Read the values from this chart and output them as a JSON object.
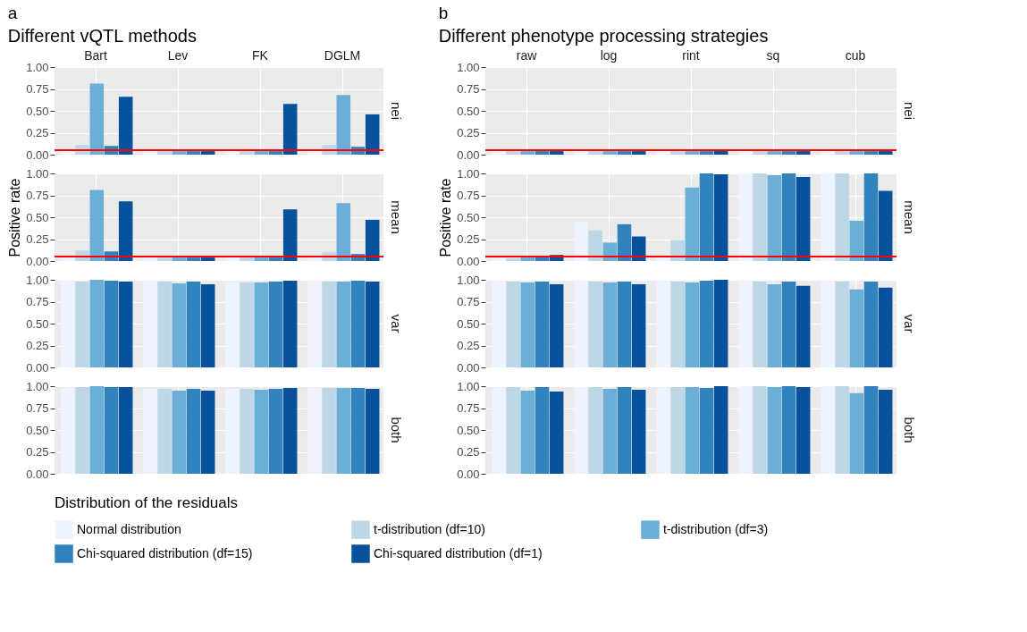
{
  "chart_data": [
    {
      "type": "bar",
      "annotations": [
        "a",
        "Different vQTL methods"
      ],
      "legend": "bottom",
      "legend_title": "Distribution of the residuals",
      "y2label": "nei",
      "categories": [
        "Bart",
        "Lev",
        "FK",
        "DGLM"
      ],
      "series": [
        {
          "name": "Normal distribution",
          "color": "#eff3ff",
          "values": [
            0.05,
            0.04,
            0.04,
            0.05
          ]
        },
        {
          "name": "t-distribution (df=10)",
          "color": "#bdd7e7",
          "values": [
            0.11,
            0.04,
            0.04,
            0.11
          ]
        },
        {
          "name": "t-distribution (df=3)",
          "color": "#6baed6",
          "values": [
            0.81,
            0.04,
            0.04,
            0.68
          ]
        },
        {
          "name": "Chi-squared distribution (df=15)",
          "color": "#3182bd",
          "values": [
            0.1,
            0.04,
            0.04,
            0.09
          ]
        },
        {
          "name": "Chi-squared distribution (df=1)",
          "color": "#08519c",
          "values": [
            0.66,
            0.04,
            0.58,
            0.46
          ]
        }
      ],
      "ylim": [
        0,
        1
      ],
      "yticks": [
        {
          "value": 0,
          "label": "0.00"
        },
        {
          "value": 0.25,
          "label": "0.25"
        },
        {
          "value": 0.5,
          "label": "0.50"
        },
        {
          "value": 0.75,
          "label": "0.75"
        },
        {
          "value": 1,
          "label": "1.00"
        }
      ],
      "grid": true,
      "ref_lines": [
        {
          "axis": "y",
          "value": 0.05,
          "color": "#ff0000"
        }
      ]
    },
    {
      "type": "bar",
      "ylabel": "Positive rate",
      "y2label": "mean",
      "categories": [
        null,
        null,
        null,
        null
      ],
      "tick_labels": "y",
      "series": [
        {
          "name": "Normal distribution",
          "color": "#eff3ff",
          "values": [
            0.05,
            0.04,
            0.04,
            0.05
          ]
        },
        {
          "name": "t-distribution (df=10)",
          "color": "#bdd7e7",
          "values": [
            0.12,
            0.04,
            0.04,
            0.1
          ]
        },
        {
          "name": "t-distribution (df=3)",
          "color": "#6baed6",
          "values": [
            0.81,
            0.04,
            0.04,
            0.66
          ]
        },
        {
          "name": "Chi-squared distribution (df=15)",
          "color": "#3182bd",
          "values": [
            0.11,
            0.04,
            0.04,
            0.08
          ]
        },
        {
          "name": "Chi-squared distribution (df=1)",
          "color": "#08519c",
          "values": [
            0.68,
            0.04,
            0.59,
            0.47
          ]
        }
      ],
      "ylim": [
        0,
        1
      ],
      "yticks": [
        {
          "value": 0,
          "label": "0.00"
        },
        {
          "value": 0.25,
          "label": "0.25"
        },
        {
          "value": 0.5,
          "label": "0.50"
        },
        {
          "value": 0.75,
          "label": "0.75"
        },
        {
          "value": 1,
          "label": "1.00"
        }
      ],
      "grid": true,
      "ref_lines": [
        {
          "axis": "y",
          "value": 0.05,
          "color": "#ff0000"
        }
      ]
    },
    {
      "type": "bar",
      "y2label": "var",
      "categories": [
        null,
        null,
        null,
        null
      ],
      "tick_labels": "y",
      "series": [
        {
          "name": "Normal distribution",
          "color": "#eff3ff",
          "values": [
            0.98,
            0.98,
            0.97,
            0.98
          ]
        },
        {
          "name": "t-distribution (df=10)",
          "color": "#bdd7e7",
          "values": [
            0.98,
            0.98,
            0.97,
            0.98
          ]
        },
        {
          "name": "t-distribution (df=3)",
          "color": "#6baed6",
          "values": [
            1.0,
            0.96,
            0.97,
            0.98
          ]
        },
        {
          "name": "Chi-squared distribution (df=15)",
          "color": "#3182bd",
          "values": [
            0.99,
            0.98,
            0.98,
            0.99
          ]
        },
        {
          "name": "Chi-squared distribution (df=1)",
          "color": "#08519c",
          "values": [
            0.98,
            0.95,
            0.99,
            0.98
          ]
        }
      ],
      "ylim": [
        0,
        1
      ],
      "yticks": [
        {
          "value": 0,
          "label": "0.00"
        },
        {
          "value": 0.25,
          "label": "0.25"
        },
        {
          "value": 0.5,
          "label": "0.50"
        },
        {
          "value": 0.75,
          "label": "0.75"
        },
        {
          "value": 1,
          "label": "1.00"
        }
      ],
      "grid": true
    },
    {
      "type": "bar",
      "y2label": "both",
      "categories": [
        null,
        null,
        null,
        null
      ],
      "tick_labels": "y",
      "series": [
        {
          "name": "Normal distribution",
          "color": "#eff3ff",
          "values": [
            0.98,
            0.97,
            0.97,
            0.98
          ]
        },
        {
          "name": "t-distribution (df=10)",
          "color": "#bdd7e7",
          "values": [
            0.99,
            0.97,
            0.97,
            0.98
          ]
        },
        {
          "name": "t-distribution (df=3)",
          "color": "#6baed6",
          "values": [
            1.0,
            0.95,
            0.96,
            0.98
          ]
        },
        {
          "name": "Chi-squared distribution (df=15)",
          "color": "#3182bd",
          "values": [
            0.99,
            0.97,
            0.97,
            0.98
          ]
        },
        {
          "name": "Chi-squared distribution (df=1)",
          "color": "#08519c",
          "values": [
            0.99,
            0.95,
            0.98,
            0.97
          ]
        }
      ],
      "ylim": [
        0,
        1
      ],
      "yticks": [
        {
          "value": 0,
          "label": "0.00"
        },
        {
          "value": 0.25,
          "label": "0.25"
        },
        {
          "value": 0.5,
          "label": "0.50"
        },
        {
          "value": 0.75,
          "label": "0.75"
        },
        {
          "value": 1,
          "label": "1.00"
        }
      ],
      "grid": true
    },
    {
      "type": "bar",
      "annotations": [
        "b",
        "Different phenotype processing strategies"
      ],
      "y2label": "nei",
      "categories": [
        "raw",
        "log",
        "rint",
        "sq",
        "cub"
      ],
      "series": [
        {
          "name": "Normal distribution",
          "color": "#eff3ff",
          "values": [
            0.04,
            0.04,
            0.04,
            0.04,
            0.04
          ]
        },
        {
          "name": "t-distribution (df=10)",
          "color": "#bdd7e7",
          "values": [
            0.04,
            0.04,
            0.04,
            0.04,
            0.04
          ]
        },
        {
          "name": "t-distribution (df=3)",
          "color": "#6baed6",
          "values": [
            0.04,
            0.04,
            0.04,
            0.04,
            0.04
          ]
        },
        {
          "name": "Chi-squared distribution (df=15)",
          "color": "#3182bd",
          "values": [
            0.04,
            0.04,
            0.04,
            0.04,
            0.04
          ]
        },
        {
          "name": "Chi-squared distribution (df=1)",
          "color": "#08519c",
          "values": [
            0.04,
            0.04,
            0.04,
            0.04,
            0.04
          ]
        }
      ],
      "ylim": [
        0,
        1
      ],
      "yticks": [
        {
          "value": 0,
          "label": "0.00"
        },
        {
          "value": 0.25,
          "label": "0.25"
        },
        {
          "value": 0.5,
          "label": "0.50"
        },
        {
          "value": 0.75,
          "label": "0.75"
        },
        {
          "value": 1,
          "label": "1.00"
        }
      ],
      "grid": true,
      "ref_lines": [
        {
          "axis": "y",
          "value": 0.05,
          "color": "#ff0000"
        }
      ]
    },
    {
      "type": "bar",
      "ylabel": "Positive rate",
      "y2label": "mean",
      "categories": [
        null,
        null,
        null,
        null,
        null
      ],
      "tick_labels": "y",
      "series": [
        {
          "name": "Normal distribution",
          "color": "#eff3ff",
          "values": [
            0.03,
            0.45,
            0.05,
            1.0,
            1.0
          ]
        },
        {
          "name": "t-distribution (df=10)",
          "color": "#bdd7e7",
          "values": [
            0.03,
            0.35,
            0.24,
            1.0,
            1.0
          ]
        },
        {
          "name": "t-distribution (df=3)",
          "color": "#6baed6",
          "values": [
            0.04,
            0.21,
            0.84,
            0.98,
            0.46
          ]
        },
        {
          "name": "Chi-squared distribution (df=15)",
          "color": "#3182bd",
          "values": [
            0.05,
            0.42,
            1.0,
            1.0,
            1.0
          ]
        },
        {
          "name": "Chi-squared distribution (df=1)",
          "color": "#08519c",
          "values": [
            0.07,
            0.28,
            0.99,
            0.96,
            0.8
          ]
        }
      ],
      "ylim": [
        0,
        1
      ],
      "yticks": [
        {
          "value": 0,
          "label": "0.00"
        },
        {
          "value": 0.25,
          "label": "0.25"
        },
        {
          "value": 0.5,
          "label": "0.50"
        },
        {
          "value": 0.75,
          "label": "0.75"
        },
        {
          "value": 1,
          "label": "1.00"
        }
      ],
      "grid": true,
      "ref_lines": [
        {
          "axis": "y",
          "value": 0.05,
          "color": "#ff0000"
        }
      ]
    },
    {
      "type": "bar",
      "y2label": "var",
      "categories": [
        null,
        null,
        null,
        null,
        null
      ],
      "tick_labels": "y",
      "series": [
        {
          "name": "Normal distribution",
          "color": "#eff3ff",
          "values": [
            0.98,
            0.98,
            0.98,
            0.98,
            0.98
          ]
        },
        {
          "name": "t-distribution (df=10)",
          "color": "#bdd7e7",
          "values": [
            0.98,
            0.98,
            0.98,
            0.98,
            0.98
          ]
        },
        {
          "name": "t-distribution (df=3)",
          "color": "#6baed6",
          "values": [
            0.97,
            0.97,
            0.97,
            0.95,
            0.89
          ]
        },
        {
          "name": "Chi-squared distribution (df=15)",
          "color": "#3182bd",
          "values": [
            0.98,
            0.98,
            0.99,
            0.98,
            0.98
          ]
        },
        {
          "name": "Chi-squared distribution (df=1)",
          "color": "#08519c",
          "values": [
            0.95,
            0.95,
            1.0,
            0.93,
            0.91
          ]
        }
      ],
      "ylim": [
        0,
        1
      ],
      "yticks": [
        {
          "value": 0,
          "label": "0.00"
        },
        {
          "value": 0.25,
          "label": "0.25"
        },
        {
          "value": 0.5,
          "label": "0.50"
        },
        {
          "value": 0.75,
          "label": "0.75"
        },
        {
          "value": 1,
          "label": "1.00"
        }
      ],
      "grid": true
    },
    {
      "type": "bar",
      "y2label": "both",
      "categories": [
        null,
        null,
        null,
        null,
        null
      ],
      "tick_labels": "y",
      "series": [
        {
          "name": "Normal distribution",
          "color": "#eff3ff",
          "values": [
            0.98,
            0.99,
            0.98,
            1.0,
            1.0
          ]
        },
        {
          "name": "t-distribution (df=10)",
          "color": "#bdd7e7",
          "values": [
            0.99,
            0.99,
            0.99,
            1.0,
            1.0
          ]
        },
        {
          "name": "t-distribution (df=3)",
          "color": "#6baed6",
          "values": [
            0.95,
            0.97,
            0.99,
            0.99,
            0.92
          ]
        },
        {
          "name": "Chi-squared distribution (df=15)",
          "color": "#3182bd",
          "values": [
            0.99,
            0.99,
            0.98,
            1.0,
            1.0
          ]
        },
        {
          "name": "Chi-squared distribution (df=1)",
          "color": "#08519c",
          "values": [
            0.94,
            0.96,
            1.0,
            0.99,
            0.96
          ]
        }
      ],
      "ylim": [
        0,
        1
      ],
      "yticks": [
        {
          "value": 0,
          "label": "0.00"
        },
        {
          "value": 0.25,
          "label": "0.25"
        },
        {
          "value": 0.5,
          "label": "0.50"
        },
        {
          "value": 0.75,
          "label": "0.75"
        },
        {
          "value": 1,
          "label": "1.00"
        }
      ],
      "grid": true
    }
  ]
}
